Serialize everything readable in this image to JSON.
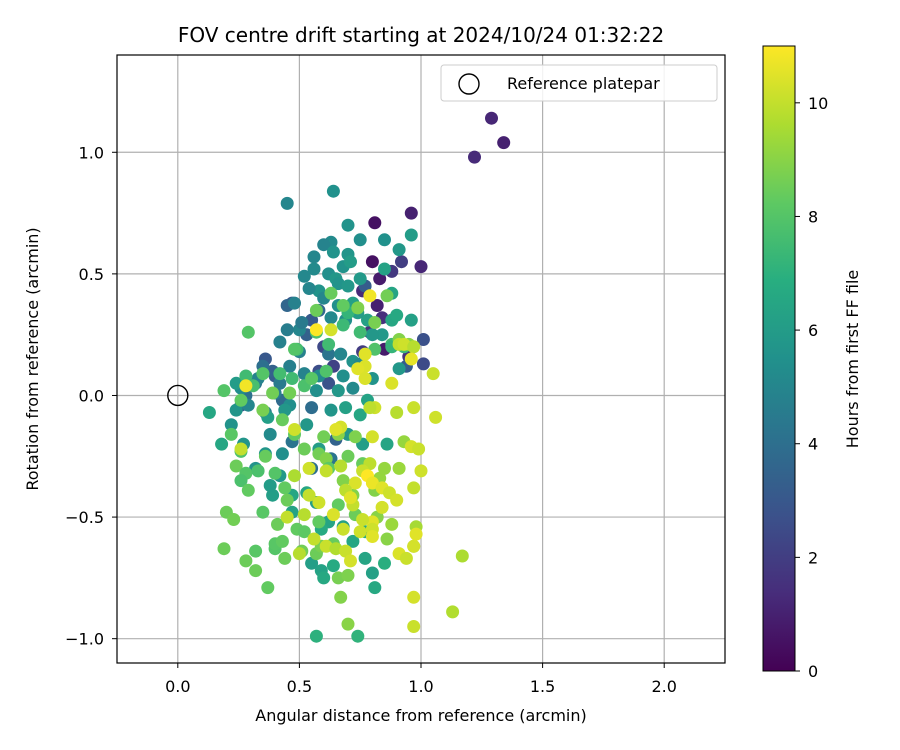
{
  "chart_data": {
    "type": "scatter",
    "title": "FOV centre drift starting at 2024/10/24 01:32:22",
    "xlabel": "Angular distance from reference (arcmin)",
    "ylabel": "Rotation from reference (arcmin)",
    "xlim": [
      -0.25,
      2.25
    ],
    "ylim": [
      -1.1,
      1.4
    ],
    "x_ticks": [
      0.0,
      0.5,
      1.0,
      1.5,
      2.0
    ],
    "x_tick_labels": [
      "0.0",
      "0.5",
      "1.0",
      "1.5",
      "2.0"
    ],
    "y_ticks": [
      -1.0,
      -0.5,
      0.0,
      0.5,
      1.0
    ],
    "y_tick_labels": [
      "−1.0",
      "−0.5",
      "0.0",
      "0.5",
      "1.0"
    ],
    "grid": true,
    "legend": {
      "placement": "top-right",
      "entries": [
        "Reference platepar"
      ]
    },
    "reference_point": {
      "name": "Reference platepar",
      "x": 0.0,
      "y": 0.0
    },
    "colorbar": {
      "label": "Hours from first FF file",
      "range": [
        0,
        11
      ],
      "ticks": [
        0,
        2,
        4,
        6,
        8,
        10
      ],
      "tick_labels": [
        "0",
        "2",
        "4",
        "6",
        "8",
        "10"
      ],
      "colormap": "viridis"
    },
    "points": [
      [
        1.29,
        1.14,
        1.2
      ],
      [
        1.34,
        1.04,
        1.0
      ],
      [
        1.22,
        0.98,
        1.3
      ],
      [
        0.96,
        0.75,
        1.0
      ],
      [
        0.81,
        0.71,
        0.5
      ],
      [
        0.8,
        0.55,
        0.5
      ],
      [
        0.83,
        0.48,
        0.8
      ],
      [
        0.76,
        0.43,
        1.3
      ],
      [
        0.82,
        0.37,
        1.0
      ],
      [
        0.88,
        0.51,
        1.8
      ],
      [
        0.92,
        0.55,
        2.0
      ],
      [
        1.0,
        0.53,
        1.2
      ],
      [
        0.85,
        0.19,
        0.8
      ],
      [
        0.95,
        0.16,
        1.5
      ],
      [
        0.79,
        0.26,
        1.6
      ],
      [
        0.84,
        0.32,
        1.5
      ],
      [
        0.76,
        0.18,
        1.9
      ],
      [
        1.01,
        0.23,
        2.7
      ],
      [
        1.01,
        0.13,
        2.5
      ],
      [
        0.94,
        0.12,
        3.2
      ],
      [
        0.64,
        0.12,
        2.2
      ],
      [
        0.6,
        0.2,
        2.4
      ],
      [
        0.62,
        0.05,
        2.8
      ],
      [
        0.58,
        0.1,
        2.6
      ],
      [
        0.36,
        0.15,
        3.0
      ],
      [
        0.4,
        0.08,
        3.2
      ],
      [
        0.26,
        -0.04,
        2.9
      ],
      [
        0.55,
        0.31,
        3.1
      ],
      [
        0.47,
        0.38,
        3.0
      ],
      [
        0.53,
        0.25,
        3.4
      ],
      [
        0.77,
        0.45,
        3.2
      ],
      [
        0.45,
        0.37,
        3.6
      ],
      [
        0.39,
        0.1,
        3.4
      ],
      [
        0.58,
        0.35,
        3.7
      ],
      [
        0.43,
        -0.02,
        3.8
      ],
      [
        0.35,
        0.12,
        4.0
      ],
      [
        0.62,
        0.17,
        4.2
      ],
      [
        0.55,
        -0.3,
        4.0
      ],
      [
        0.47,
        -0.19,
        4.2
      ],
      [
        0.63,
        -0.26,
        4.2
      ],
      [
        0.55,
        -0.05,
        3.9
      ],
      [
        0.65,
        -0.18,
        3.5
      ],
      [
        0.28,
        0.0,
        4.1
      ],
      [
        0.32,
        0.05,
        4.3
      ],
      [
        0.45,
        0.79,
        5.0
      ],
      [
        0.64,
        0.84,
        5.5
      ],
      [
        0.7,
        0.7,
        5.6
      ],
      [
        0.96,
        0.66,
        6.0
      ],
      [
        0.91,
        0.6,
        5.8
      ],
      [
        0.85,
        0.64,
        5.5
      ],
      [
        0.75,
        0.64,
        5.4
      ],
      [
        0.63,
        0.63,
        5.2
      ],
      [
        0.6,
        0.62,
        4.9
      ],
      [
        0.56,
        0.57,
        5.0
      ],
      [
        0.7,
        0.58,
        5.7
      ],
      [
        0.64,
        0.59,
        5.6
      ],
      [
        0.56,
        0.52,
        5.2
      ],
      [
        0.52,
        0.49,
        5.1
      ],
      [
        0.68,
        0.53,
        5.6
      ],
      [
        0.62,
        0.5,
        5.4
      ],
      [
        0.65,
        0.48,
        5.8
      ],
      [
        0.71,
        0.55,
        6.0
      ],
      [
        0.58,
        0.43,
        5.6
      ],
      [
        0.54,
        0.44,
        5.0
      ],
      [
        0.48,
        0.38,
        4.8
      ],
      [
        0.66,
        0.46,
        5.6
      ],
      [
        0.7,
        0.45,
        5.8
      ],
      [
        0.75,
        0.48,
        5.9
      ],
      [
        0.6,
        0.4,
        5.0
      ],
      [
        0.72,
        0.38,
        6.2
      ],
      [
        0.78,
        0.31,
        6.2
      ],
      [
        0.74,
        0.34,
        6.0
      ],
      [
        0.69,
        0.31,
        5.4
      ],
      [
        0.63,
        0.32,
        5.1
      ],
      [
        0.66,
        0.37,
        5.4
      ],
      [
        0.85,
        0.52,
        6.3
      ],
      [
        0.88,
        0.42,
        6.4
      ],
      [
        0.88,
        0.31,
        6.5
      ],
      [
        0.9,
        0.33,
        6.6
      ],
      [
        0.84,
        0.25,
        5.9
      ],
      [
        0.8,
        0.25,
        5.8
      ],
      [
        0.96,
        0.31,
        6.2
      ],
      [
        0.5,
        0.27,
        5.0
      ],
      [
        0.45,
        0.27,
        4.6
      ],
      [
        0.5,
        0.18,
        4.8
      ],
      [
        0.51,
        0.3,
        4.5
      ],
      [
        0.42,
        0.22,
        4.8
      ],
      [
        0.46,
        0.12,
        4.7
      ],
      [
        0.52,
        0.09,
        4.9
      ],
      [
        0.58,
        0.08,
        5.2
      ],
      [
        0.68,
        0.08,
        5.4
      ],
      [
        0.72,
        0.03,
        5.2
      ],
      [
        0.72,
        0.14,
        5.6
      ],
      [
        0.67,
        0.17,
        5.0
      ],
      [
        0.75,
        0.13,
        5.2
      ],
      [
        0.8,
        0.07,
        5.6
      ],
      [
        0.91,
        0.11,
        5.8
      ],
      [
        0.66,
        0.02,
        5.8
      ],
      [
        0.57,
        0.02,
        5.4
      ],
      [
        0.63,
        -0.06,
        5.7
      ],
      [
        0.4,
        0.01,
        4.6
      ],
      [
        0.42,
        0.05,
        4.5
      ],
      [
        0.33,
        0.07,
        4.9
      ],
      [
        0.29,
        -0.04,
        5.0
      ],
      [
        0.36,
        -0.07,
        4.8
      ],
      [
        0.46,
        -0.04,
        5.4
      ],
      [
        0.38,
        -0.16,
        5.2
      ],
      [
        0.43,
        -0.24,
        5.4
      ],
      [
        0.36,
        -0.24,
        5.7
      ],
      [
        0.32,
        -0.3,
        5.6
      ],
      [
        0.27,
        -0.2,
        5.7
      ],
      [
        0.22,
        -0.12,
        5.6
      ],
      [
        0.24,
        -0.06,
        5.7
      ],
      [
        0.26,
        0.03,
        5.3
      ],
      [
        0.24,
        0.05,
        6.0
      ],
      [
        0.13,
        -0.07,
        6.5
      ],
      [
        0.18,
        -0.2,
        6.5
      ],
      [
        0.37,
        -0.09,
        6.1
      ],
      [
        0.44,
        -0.06,
        5.8
      ],
      [
        0.53,
        -0.12,
        5.8
      ],
      [
        0.58,
        -0.22,
        6.0
      ],
      [
        0.69,
        -0.05,
        6.2
      ],
      [
        0.75,
        -0.08,
        6.5
      ],
      [
        0.78,
        -0.02,
        6.3
      ],
      [
        0.7,
        -0.16,
        5.8
      ],
      [
        0.76,
        -0.2,
        6.1
      ],
      [
        0.86,
        -0.2,
        6.4
      ],
      [
        0.42,
        -0.33,
        5.9
      ],
      [
        0.47,
        -0.41,
        6.5
      ],
      [
        0.39,
        -0.41,
        6.1
      ],
      [
        0.47,
        -0.48,
        6.3
      ],
      [
        0.53,
        -0.4,
        6.5
      ],
      [
        0.57,
        -0.44,
        6.1
      ],
      [
        0.62,
        -0.52,
        6.4
      ],
      [
        0.38,
        -0.37,
        6.0
      ],
      [
        0.55,
        -0.69,
        6.1
      ],
      [
        0.59,
        -0.72,
        6.3
      ],
      [
        0.64,
        -0.7,
        6.7
      ],
      [
        0.6,
        -0.75,
        6.6
      ],
      [
        0.57,
        -0.99,
        7.0
      ],
      [
        0.59,
        -0.55,
        6.7
      ],
      [
        0.72,
        -0.6,
        6.5
      ],
      [
        0.68,
        -0.54,
        6.2
      ],
      [
        0.77,
        -0.56,
        6.8
      ],
      [
        0.77,
        -0.67,
        6.4
      ],
      [
        0.81,
        -0.79,
        6.6
      ],
      [
        0.8,
        -0.73,
        6.2
      ],
      [
        0.85,
        -0.69,
        6.9
      ],
      [
        0.74,
        -0.99,
        7.1
      ],
      [
        0.88,
        0.21,
        7.5
      ],
      [
        0.88,
        0.2,
        7.2
      ],
      [
        0.93,
        0.2,
        7.4
      ],
      [
        0.81,
        0.19,
        7.9
      ],
      [
        0.75,
        0.26,
        7.5
      ],
      [
        0.7,
        0.34,
        7.2
      ],
      [
        0.68,
        0.29,
        7.4
      ],
      [
        0.62,
        0.21,
        7.5
      ],
      [
        0.57,
        0.26,
        7.8
      ],
      [
        0.49,
        0.19,
        7.6
      ],
      [
        0.48,
        0.19,
        8.0
      ],
      [
        0.47,
        0.07,
        7.5
      ],
      [
        0.52,
        0.04,
        7.8
      ],
      [
        0.55,
        0.07,
        8.1
      ],
      [
        0.61,
        0.1,
        7.9
      ],
      [
        0.29,
        0.26,
        8.0
      ],
      [
        0.19,
        0.02,
        8.0
      ],
      [
        0.26,
        -0.02,
        8.3
      ],
      [
        0.31,
        0.04,
        7.7
      ],
      [
        0.28,
        0.08,
        7.5
      ],
      [
        0.35,
        0.09,
        8.0
      ],
      [
        0.42,
        0.09,
        7.6
      ],
      [
        0.22,
        -0.16,
        8.1
      ],
      [
        0.26,
        -0.23,
        7.9
      ],
      [
        0.24,
        -0.29,
        8.5
      ],
      [
        0.28,
        -0.32,
        8.0
      ],
      [
        0.26,
        -0.35,
        7.8
      ],
      [
        0.29,
        -0.39,
        8.3
      ],
      [
        0.33,
        -0.31,
        7.8
      ],
      [
        0.36,
        -0.25,
        8.4
      ],
      [
        0.4,
        -0.32,
        8.0
      ],
      [
        0.44,
        -0.38,
        8.3
      ],
      [
        0.35,
        -0.48,
        8.1
      ],
      [
        0.41,
        -0.53,
        8.5
      ],
      [
        0.45,
        -0.43,
        8.5
      ],
      [
        0.49,
        -0.55,
        8.3
      ],
      [
        0.52,
        -0.56,
        8.2
      ],
      [
        0.44,
        -0.67,
        8.5
      ],
      [
        0.4,
        -0.63,
        8.0
      ],
      [
        0.37,
        -0.79,
        8.3
      ],
      [
        0.32,
        -0.72,
        8.5
      ],
      [
        0.28,
        -0.68,
        8.5
      ],
      [
        0.2,
        -0.48,
        8.5
      ],
      [
        0.23,
        -0.51,
        8.6
      ],
      [
        0.19,
        -0.63,
        8.5
      ],
      [
        0.32,
        -0.64,
        8.1
      ],
      [
        0.4,
        -0.61,
        8.1
      ],
      [
        0.43,
        -0.6,
        8.3
      ],
      [
        0.51,
        -0.64,
        8.6
      ],
      [
        0.57,
        -0.65,
        8.5
      ],
      [
        0.58,
        -0.52,
        8.3
      ],
      [
        0.59,
        -0.62,
        8.7
      ],
      [
        0.64,
        -0.61,
        8.4
      ],
      [
        0.66,
        -0.75,
        8.7
      ],
      [
        0.67,
        -0.83,
        8.9
      ],
      [
        0.7,
        -0.74,
        8.8
      ],
      [
        0.7,
        -0.94,
        9.0
      ],
      [
        0.58,
        -0.24,
        8.6
      ],
      [
        0.52,
        -0.22,
        8.5
      ],
      [
        0.48,
        -0.16,
        8.3
      ],
      [
        0.43,
        -0.1,
        8.4
      ],
      [
        0.35,
        -0.06,
        8.7
      ],
      [
        0.39,
        0.01,
        8.6
      ],
      [
        0.46,
        0.01,
        8.6
      ],
      [
        0.6,
        -0.17,
        8.6
      ],
      [
        0.61,
        -0.26,
        8.9
      ],
      [
        0.66,
        -0.16,
        9.0
      ],
      [
        0.73,
        -0.17,
        8.8
      ],
      [
        0.76,
        -0.28,
        8.4
      ],
      [
        0.72,
        -0.41,
        8.9
      ],
      [
        0.73,
        -0.49,
        8.5
      ],
      [
        0.66,
        -0.45,
        8.3
      ],
      [
        0.7,
        -0.25,
        8.5
      ],
      [
        0.62,
        -0.3,
        8.2
      ],
      [
        0.68,
        -0.35,
        8.9
      ],
      [
        0.81,
        -0.39,
        8.9
      ],
      [
        0.83,
        -0.34,
        9.2
      ],
      [
        0.85,
        -0.3,
        9.2
      ],
      [
        0.91,
        -0.3,
        9.3
      ],
      [
        0.82,
        -0.5,
        9.0
      ],
      [
        0.86,
        -0.59,
        9.0
      ],
      [
        0.88,
        -0.53,
        9.3
      ],
      [
        0.63,
        0.42,
        8.4
      ],
      [
        0.57,
        0.35,
        8.5
      ],
      [
        0.74,
        0.36,
        8.8
      ],
      [
        0.68,
        0.37,
        8.3
      ],
      [
        0.81,
        0.3,
        8.7
      ],
      [
        0.86,
        0.41,
        8.6
      ],
      [
        0.91,
        0.23,
        8.9
      ],
      [
        0.95,
        0.21,
        9.0
      ],
      [
        0.93,
        -0.19,
        9.2
      ],
      [
        1.17,
        -0.66,
        9.6
      ],
      [
        1.13,
        -0.89,
        9.7
      ],
      [
        0.98,
        -0.54,
        9.5
      ],
      [
        0.97,
        -0.62,
        9.5
      ],
      [
        0.63,
        0.27,
        10.3
      ],
      [
        0.57,
        0.27,
        11.0
      ],
      [
        0.79,
        0.41,
        10.8
      ],
      [
        0.77,
        0.12,
        10.4
      ],
      [
        0.74,
        0.11,
        10.5
      ],
      [
        0.77,
        0.07,
        10.4
      ],
      [
        0.91,
        0.21,
        10.0
      ],
      [
        0.93,
        0.21,
        10.2
      ],
      [
        0.97,
        0.2,
        9.8
      ],
      [
        1.05,
        0.09,
        10.1
      ],
      [
        1.06,
        -0.09,
        10.2
      ],
      [
        0.97,
        -0.05,
        10.1
      ],
      [
        0.9,
        -0.07,
        9.8
      ],
      [
        0.81,
        -0.05,
        10.2
      ],
      [
        0.8,
        -0.17,
        10.3
      ],
      [
        0.79,
        -0.28,
        9.9
      ],
      [
        0.76,
        -0.31,
        10.1
      ],
      [
        0.73,
        -0.36,
        10.4
      ],
      [
        0.72,
        -0.45,
        10.0
      ],
      [
        0.78,
        -0.33,
        11.0
      ],
      [
        0.8,
        -0.36,
        10.7
      ],
      [
        0.84,
        -0.38,
        10.5
      ],
      [
        0.87,
        -0.4,
        10.2
      ],
      [
        0.84,
        -0.46,
        10.3
      ],
      [
        0.8,
        -0.52,
        10.5
      ],
      [
        0.76,
        -0.51,
        10.1
      ],
      [
        0.8,
        -0.55,
        10.2
      ],
      [
        0.8,
        -0.58,
        10.5
      ],
      [
        0.68,
        -0.55,
        10.1
      ],
      [
        0.64,
        -0.49,
        10.4
      ],
      [
        0.58,
        -0.44,
        10.2
      ],
      [
        0.54,
        -0.41,
        10.0
      ],
      [
        0.54,
        -0.3,
        10.2
      ],
      [
        0.61,
        -0.31,
        10.0
      ],
      [
        0.67,
        -0.29,
        9.8
      ],
      [
        0.69,
        -0.39,
        9.9
      ],
      [
        0.48,
        -0.33,
        9.6
      ],
      [
        0.52,
        -0.49,
        9.8
      ],
      [
        0.45,
        -0.5,
        10.0
      ],
      [
        0.5,
        -0.65,
        9.8
      ],
      [
        0.56,
        -0.59,
        10.0
      ],
      [
        0.61,
        -0.62,
        10.1
      ],
      [
        0.65,
        -0.63,
        9.7
      ],
      [
        0.69,
        -0.64,
        10.1
      ],
      [
        0.71,
        -0.68,
        10.3
      ],
      [
        0.75,
        -0.56,
        10.2
      ],
      [
        0.91,
        -0.65,
        10.4
      ],
      [
        0.94,
        -0.67,
        10.1
      ],
      [
        0.97,
        -0.62,
        10.3
      ],
      [
        0.98,
        -0.57,
        10.5
      ],
      [
        0.97,
        -0.38,
        10.0
      ],
      [
        0.96,
        -0.21,
        10.3
      ],
      [
        0.99,
        -0.22,
        10.1
      ],
      [
        1.0,
        -0.31,
        10.2
      ],
      [
        0.97,
        -0.83,
        10.3
      ],
      [
        0.97,
        -0.95,
        10.1
      ],
      [
        0.9,
        -0.43,
        10.3
      ],
      [
        0.67,
        -0.13,
        10.3
      ],
      [
        0.65,
        -0.14,
        10.5
      ],
      [
        0.28,
        0.04,
        10.8
      ],
      [
        0.26,
        -0.22,
        10.0
      ],
      [
        0.48,
        -0.14,
        10.2
      ],
      [
        0.71,
        -0.42,
        10.5
      ],
      [
        0.79,
        -0.05,
        9.9
      ],
      [
        0.77,
        0.17,
        10.5
      ],
      [
        0.96,
        0.15,
        10.6
      ],
      [
        0.88,
        0.05,
        10.4
      ]
    ]
  }
}
